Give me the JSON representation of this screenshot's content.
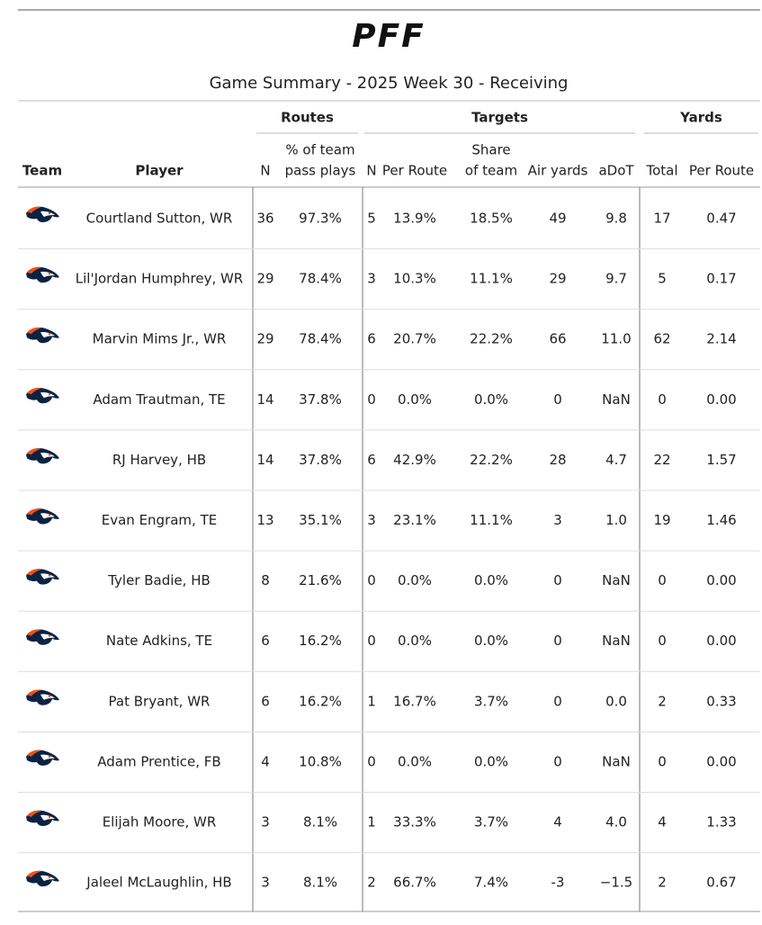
{
  "header": {
    "logo": "PFF",
    "title": "Game Summary - 2025 Week 30 - Receiving"
  },
  "table": {
    "groups": [
      "Routes",
      "Targets",
      "Yards"
    ],
    "columns": [
      [
        "Team"
      ],
      [
        "Player"
      ],
      [
        "N"
      ],
      [
        "% of team",
        "pass plays"
      ],
      [
        "N"
      ],
      [
        "Per Route"
      ],
      [
        "Share",
        "of team"
      ],
      [
        "Air yards"
      ],
      [
        "aDoT"
      ],
      [
        "Total"
      ],
      [
        "Per Route"
      ]
    ],
    "rows": [
      [
        "Courtland Sutton, WR",
        "36",
        "97.3%",
        "5",
        "13.9%",
        "18.5%",
        "49",
        "9.8",
        "17",
        "0.47"
      ],
      [
        "Lil'Jordan Humphrey, WR",
        "29",
        "78.4%",
        "3",
        "10.3%",
        "11.1%",
        "29",
        "9.7",
        "5",
        "0.17"
      ],
      [
        "Marvin Mims Jr., WR",
        "29",
        "78.4%",
        "6",
        "20.7%",
        "22.2%",
        "66",
        "11.0",
        "62",
        "2.14"
      ],
      [
        "Adam Trautman, TE",
        "14",
        "37.8%",
        "0",
        "0.0%",
        "0.0%",
        "0",
        "NaN",
        "0",
        "0.00"
      ],
      [
        "RJ Harvey, HB",
        "14",
        "37.8%",
        "6",
        "42.9%",
        "22.2%",
        "28",
        "4.7",
        "22",
        "1.57"
      ],
      [
        "Evan Engram, TE",
        "13",
        "35.1%",
        "3",
        "23.1%",
        "11.1%",
        "3",
        "1.0",
        "19",
        "1.46"
      ],
      [
        "Tyler Badie, HB",
        "8",
        "21.6%",
        "0",
        "0.0%",
        "0.0%",
        "0",
        "NaN",
        "0",
        "0.00"
      ],
      [
        "Nate Adkins, TE",
        "6",
        "16.2%",
        "0",
        "0.0%",
        "0.0%",
        "0",
        "NaN",
        "0",
        "0.00"
      ],
      [
        "Pat Bryant, WR",
        "6",
        "16.2%",
        "1",
        "16.7%",
        "3.7%",
        "0",
        "0.0",
        "2",
        "0.33"
      ],
      [
        "Adam Prentice, FB",
        "4",
        "10.8%",
        "0",
        "0.0%",
        "0.0%",
        "0",
        "NaN",
        "0",
        "0.00"
      ],
      [
        "Elijah Moore, WR",
        "3",
        "8.1%",
        "1",
        "33.3%",
        "3.7%",
        "4",
        "4.0",
        "4",
        "1.33"
      ],
      [
        "Jaleel McLaughlin, HB",
        "3",
        "8.1%",
        "2",
        "66.7%",
        "7.4%",
        "-3",
        "−1.5",
        "2",
        "0.67"
      ]
    ]
  }
}
